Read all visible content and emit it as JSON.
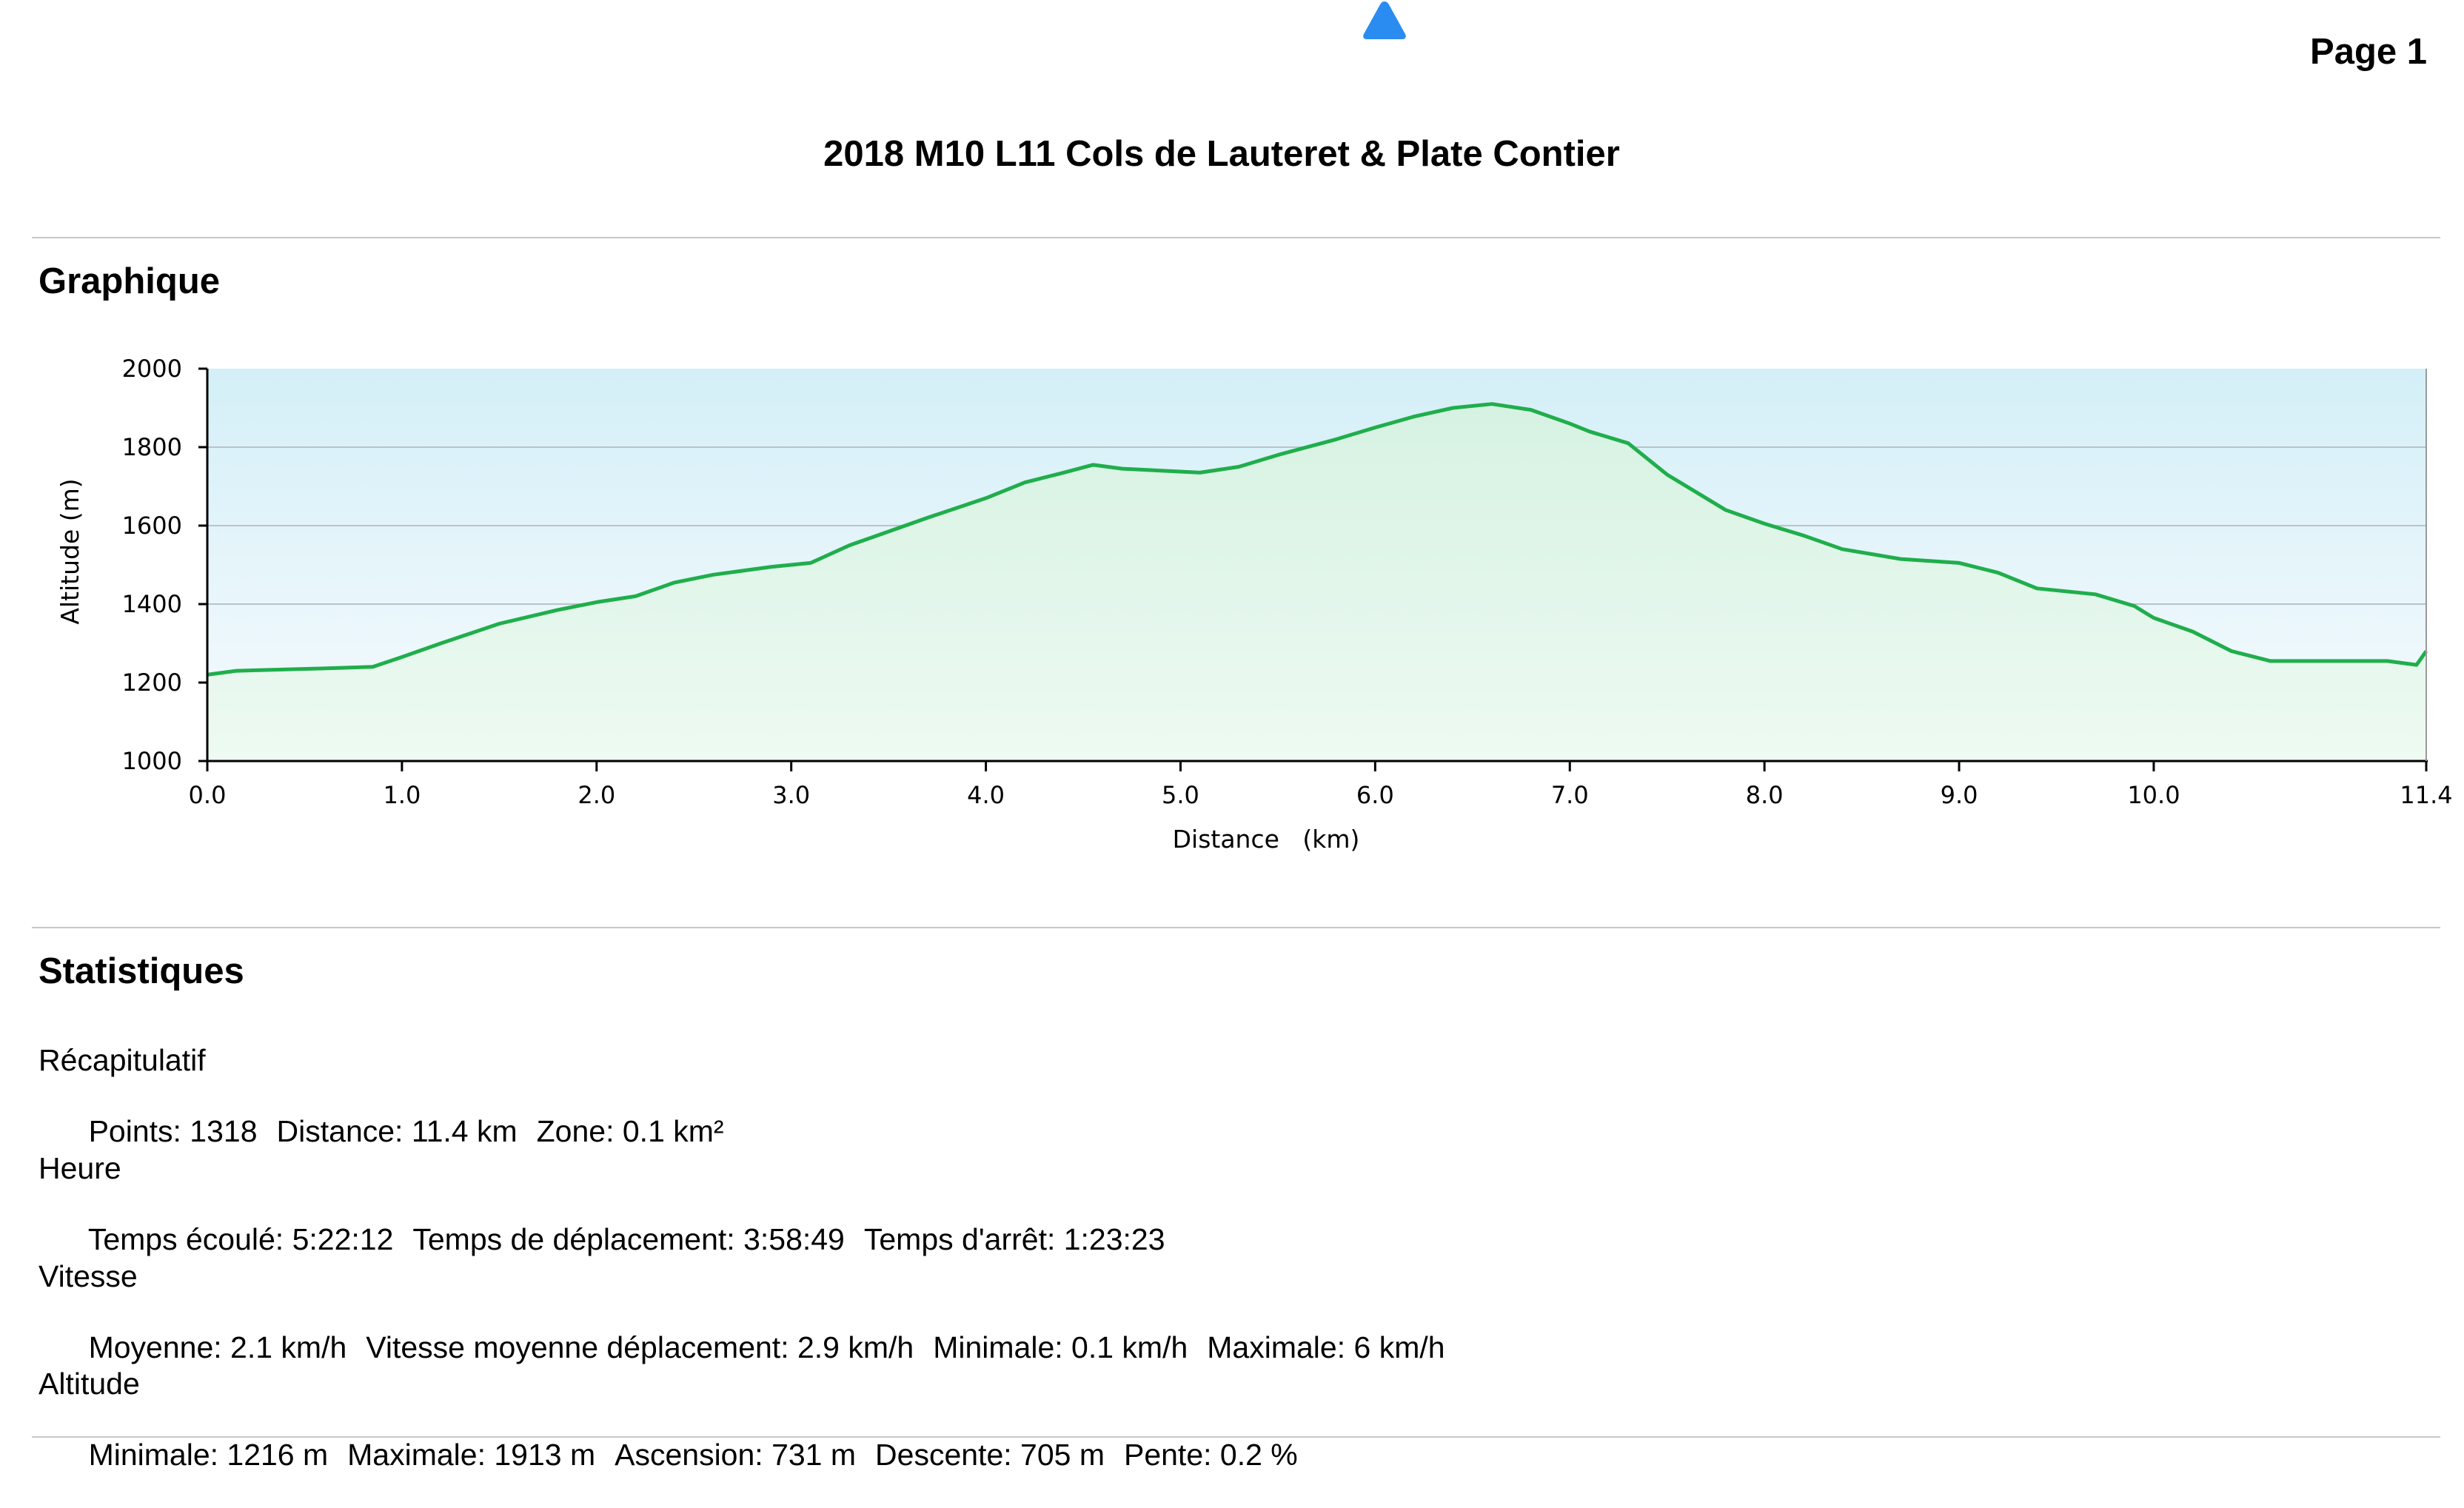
{
  "header": {
    "page_label": "Page 1",
    "title": "2018 M10 L11 Cols de Lauteret & Plate Contier",
    "logo_icon": "triangle-icon",
    "logo_color": "#2a8cf0"
  },
  "sections": {
    "graph_title": "Graphique",
    "stats_title": "Statistiques"
  },
  "chart_data": {
    "type": "area",
    "xlabel": "Distance   (km)",
    "ylabel": "Altitude (m)",
    "xlim": [
      0,
      11.4
    ],
    "ylim": [
      1000,
      2000
    ],
    "x_ticks": [
      "0.0",
      "1.0",
      "2.0",
      "3.0",
      "4.0",
      "5.0",
      "6.0",
      "7.0",
      "8.0",
      "9.0",
      "10.0",
      "11.4"
    ],
    "y_ticks": [
      "2000",
      "1800",
      "1600",
      "1400",
      "1200",
      "1000"
    ],
    "grid": true,
    "line_color": "#1fae4b",
    "series": [
      {
        "x": [
          0.0,
          0.15,
          0.3,
          0.6,
          0.85,
          1.0,
          1.2,
          1.5,
          1.8,
          2.0,
          2.2,
          2.4,
          2.6,
          2.9,
          3.1,
          3.3,
          3.5,
          3.7,
          4.0,
          4.2,
          4.4,
          4.55,
          4.7,
          4.9,
          5.1,
          5.3,
          5.5,
          5.8,
          6.0,
          6.2,
          6.4,
          6.6,
          6.8,
          7.0,
          7.1,
          7.3,
          7.5,
          7.8,
          8.0,
          8.2,
          8.4,
          8.7,
          9.0,
          9.2,
          9.4,
          9.7,
          9.9,
          10.0,
          10.2,
          10.4,
          10.6,
          10.9,
          11.2,
          11.35,
          11.4
        ],
        "y": [
          1220,
          1230,
          1232,
          1236,
          1240,
          1265,
          1300,
          1350,
          1385,
          1405,
          1420,
          1455,
          1475,
          1495,
          1505,
          1550,
          1585,
          1620,
          1670,
          1710,
          1735,
          1755,
          1745,
          1740,
          1735,
          1750,
          1780,
          1820,
          1850,
          1878,
          1900,
          1910,
          1895,
          1860,
          1840,
          1810,
          1730,
          1640,
          1605,
          1575,
          1540,
          1515,
          1505,
          1480,
          1440,
          1425,
          1395,
          1365,
          1330,
          1280,
          1255,
          1255,
          1255,
          1245,
          1280
        ]
      }
    ]
  },
  "stats": {
    "recap": {
      "heading": "Récapitulatif",
      "items": [
        "Points: 1318",
        "Distance: 11.4 km",
        "Zone: 0.1 km²"
      ]
    },
    "heure": {
      "heading": "Heure",
      "items": [
        "Temps écoulé: 5:22:12",
        "Temps de déplacement: 3:58:49",
        "Temps d'arrêt: 1:23:23"
      ]
    },
    "vitesse": {
      "heading": "Vitesse",
      "items": [
        "Moyenne: 2.1 km/h",
        "Vitesse moyenne déplacement: 2.9 km/h",
        "Minimale: 0.1 km/h",
        "Maximale: 6 km/h"
      ]
    },
    "altitude": {
      "heading": "Altitude",
      "items": [
        "Minimale: 1216 m",
        "Maximale: 1913 m",
        "Ascension: 731 m",
        "Descente: 705 m",
        "Pente: 0.2 %"
      ]
    }
  }
}
